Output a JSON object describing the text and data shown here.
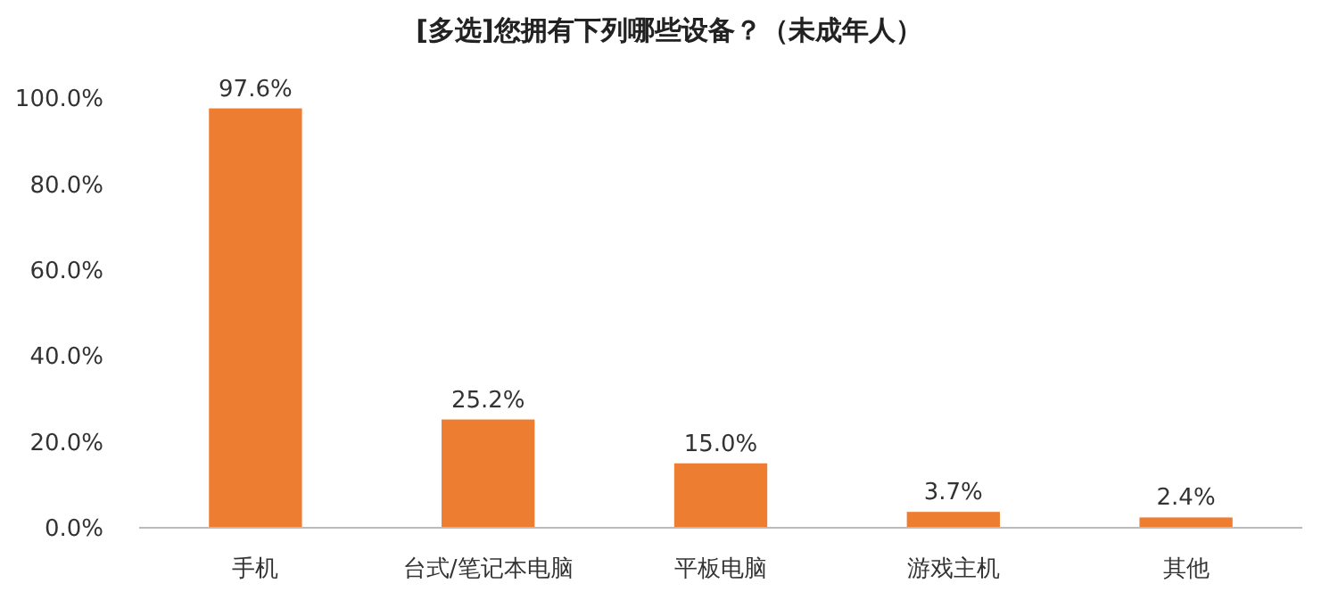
{
  "chart_data": {
    "type": "bar",
    "title": "[多选]您拥有下列哪些设备？（未成年人）",
    "categories": [
      "手机",
      "台式/笔记本电脑",
      "平板电脑",
      "游戏主机",
      "其他"
    ],
    "values": [
      97.6,
      25.2,
      15.0,
      3.7,
      2.4
    ],
    "value_labels": [
      "97.6%",
      "25.2%",
      "15.0%",
      "3.7%",
      "2.4%"
    ],
    "color": "#ed7d31",
    "ylim": [
      0,
      100
    ],
    "yticks": [
      {
        "value": 0,
        "label": "0.0%"
      },
      {
        "value": 20,
        "label": "20.0%"
      },
      {
        "value": 40,
        "label": "40.0%"
      },
      {
        "value": 60,
        "label": "60.0%"
      },
      {
        "value": 80,
        "label": "80.0%"
      },
      {
        "value": 100,
        "label": "100.0%"
      }
    ],
    "grid": false
  }
}
